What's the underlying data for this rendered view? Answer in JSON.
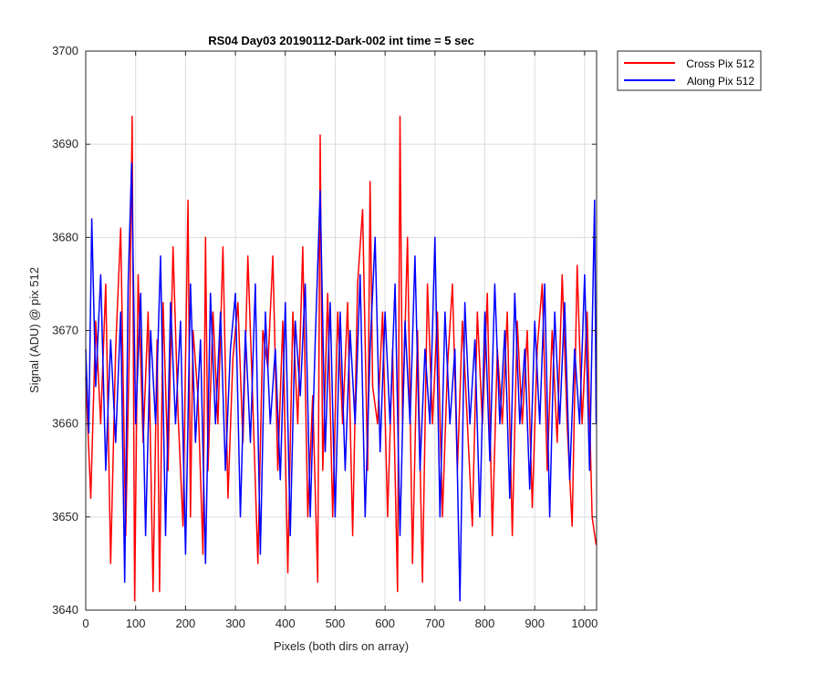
{
  "chart_data": {
    "type": "line",
    "title": "RS04 Day03 20190112-Dark-002 int time = 5 sec",
    "xlabel": "Pixels (both dirs on array)",
    "ylabel": "Signal (ADU) @ pix 512",
    "xlim": [
      0,
      1024
    ],
    "ylim": [
      3640,
      3700
    ],
    "xticks": [
      0,
      100,
      200,
      300,
      400,
      500,
      600,
      700,
      800,
      900,
      1000
    ],
    "yticks": [
      3640,
      3650,
      3660,
      3670,
      3680,
      3690,
      3700
    ],
    "grid": true,
    "legend_position": "outside-top-right",
    "series": [
      {
        "name": "Cross Pix 512",
        "color": "#ff0000",
        "x": [
          0,
          10,
          20,
          30,
          40,
          50,
          60,
          70,
          80,
          88,
          93,
          98,
          105,
          115,
          125,
          135,
          143,
          148,
          155,
          165,
          175,
          185,
          195,
          205,
          210,
          215,
          225,
          235,
          240,
          245,
          255,
          265,
          275,
          285,
          295,
          305,
          315,
          325,
          335,
          345,
          355,
          365,
          375,
          385,
          395,
          405,
          415,
          425,
          435,
          445,
          455,
          465,
          470,
          475,
          485,
          495,
          505,
          515,
          525,
          535,
          545,
          555,
          565,
          570,
          575,
          585,
          595,
          605,
          615,
          625,
          630,
          635,
          645,
          655,
          665,
          675,
          685,
          695,
          705,
          715,
          725,
          735,
          745,
          755,
          765,
          775,
          785,
          795,
          805,
          815,
          825,
          835,
          845,
          855,
          865,
          875,
          885,
          895,
          905,
          915,
          925,
          935,
          945,
          955,
          965,
          975,
          985,
          995,
          1005,
          1015,
          1023
        ],
        "values": [
          3665,
          3652,
          3671,
          3660,
          3675,
          3645,
          3668,
          3681,
          3648,
          3670,
          3693,
          3641,
          3676,
          3658,
          3672,
          3642,
          3669,
          3642,
          3673,
          3655,
          3679,
          3661,
          3649,
          3684,
          3650,
          3670,
          3663,
          3646,
          3680,
          3655,
          3672,
          3660,
          3679,
          3652,
          3667,
          3673,
          3658,
          3678,
          3662,
          3645,
          3670,
          3666,
          3678,
          3655,
          3671,
          3644,
          3672,
          3660,
          3679,
          3650,
          3663,
          3643,
          3691,
          3655,
          3674,
          3650,
          3672,
          3660,
          3673,
          3648,
          3675,
          3683,
          3655,
          3686,
          3664,
          3660,
          3672,
          3650,
          3668,
          3642,
          3693,
          3660,
          3680,
          3645,
          3670,
          3643,
          3675,
          3660,
          3672,
          3650,
          3666,
          3675,
          3655,
          3671,
          3660,
          3649,
          3672,
          3660,
          3674,
          3648,
          3668,
          3660,
          3672,
          3648,
          3671,
          3660,
          3670,
          3651,
          3668,
          3675,
          3655,
          3670,
          3658,
          3676,
          3660,
          3649,
          3677,
          3660,
          3672,
          3650,
          3647
        ]
      },
      {
        "name": "Along Pix 512",
        "color": "#0000ff",
        "x": [
          0,
          6,
          12,
          20,
          30,
          40,
          50,
          60,
          70,
          78,
          85,
          92,
          100,
          110,
          120,
          130,
          140,
          150,
          160,
          170,
          180,
          190,
          200,
          210,
          220,
          230,
          240,
          250,
          260,
          270,
          280,
          290,
          300,
          310,
          320,
          330,
          340,
          350,
          360,
          370,
          380,
          390,
          400,
          410,
          420,
          430,
          440,
          450,
          460,
          470,
          480,
          490,
          500,
          510,
          520,
          530,
          540,
          550,
          560,
          570,
          580,
          590,
          600,
          610,
          620,
          630,
          640,
          650,
          660,
          670,
          680,
          690,
          700,
          710,
          720,
          730,
          740,
          750,
          760,
          770,
          780,
          790,
          800,
          810,
          820,
          830,
          840,
          850,
          860,
          870,
          880,
          890,
          900,
          910,
          920,
          930,
          940,
          950,
          960,
          970,
          980,
          990,
          1000,
          1010,
          1020,
          1023
        ],
        "values": [
          3668,
          3659,
          3682,
          3664,
          3676,
          3655,
          3669,
          3658,
          3672,
          3643,
          3675,
          3688,
          3660,
          3674,
          3648,
          3670,
          3660,
          3678,
          3648,
          3673,
          3660,
          3671,
          3646,
          3675,
          3658,
          3669,
          3645,
          3674,
          3660,
          3672,
          3655,
          3668,
          3674,
          3650,
          3670,
          3658,
          3675,
          3646,
          3672,
          3660,
          3668,
          3654,
          3673,
          3648,
          3671,
          3663,
          3675,
          3650,
          3669,
          3685,
          3657,
          3673,
          3650,
          3672,
          3655,
          3670,
          3660,
          3676,
          3650,
          3668,
          3680,
          3657,
          3672,
          3660,
          3675,
          3648,
          3671,
          3660,
          3678,
          3655,
          3668,
          3660,
          3680,
          3650,
          3672,
          3660,
          3668,
          3641,
          3673,
          3660,
          3669,
          3650,
          3672,
          3656,
          3675,
          3660,
          3670,
          3652,
          3674,
          3660,
          3668,
          3653,
          3671,
          3660,
          3675,
          3650,
          3672,
          3660,
          3673,
          3654,
          3668,
          3660,
          3676,
          3655,
          3684,
          3660
        ]
      }
    ]
  }
}
